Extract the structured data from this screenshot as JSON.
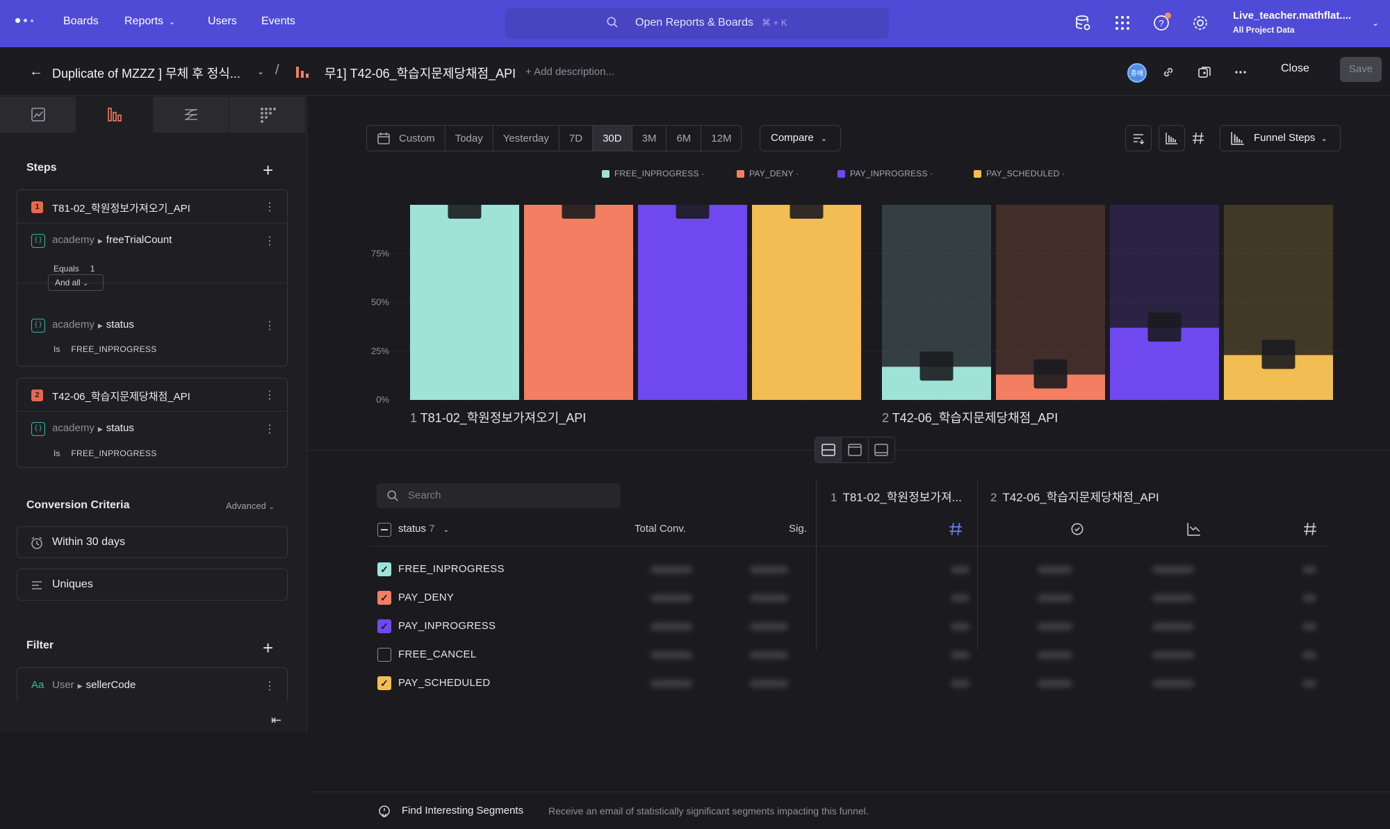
{
  "nav": {
    "links": [
      "Boards",
      "Reports",
      "Users",
      "Events"
    ],
    "search_text": "Open Reports & Boards",
    "search_shortcut": "⌘ + K",
    "account_name": "Live_teacher.mathflat....",
    "account_sub": "All Project Data",
    "brand_color": "#4f4bd6"
  },
  "breadcrumb": {
    "parent": "Duplicate of MZZZ ] 무체 후 정식...",
    "separator": "/",
    "report": "무1] T42-06_학습지문제당채점_API",
    "add_description": "+ Add description...",
    "avatar_text": "종배",
    "close": "Close",
    "save": "Save"
  },
  "left": {
    "steps_title": "Steps",
    "steps": [
      {
        "num": "1",
        "name": "T81-02_학원정보가져오기_API",
        "filters": [
          {
            "source": "academy",
            "prop": "freeTrialCount",
            "op": "Equals",
            "value": "1"
          },
          {
            "source": "academy",
            "prop": "status",
            "op": "Is",
            "value": "FREE_INPROGRESS"
          }
        ],
        "combinator": "And all"
      },
      {
        "num": "2",
        "name": "T42-06_학습지문제당채점_API",
        "filters": [
          {
            "source": "academy",
            "prop": "status",
            "op": "Is",
            "value": "FREE_INPROGRESS"
          }
        ]
      }
    ],
    "conversion_title": "Conversion Criteria",
    "advanced": "Advanced",
    "within": "Within 30 days",
    "uniques": "Uniques",
    "filter_title": "Filter",
    "filter": {
      "type": "Aa",
      "source": "User",
      "prop": "sellerCode"
    }
  },
  "toolbar": {
    "ranges": [
      "Custom",
      "Today",
      "Yesterday",
      "7D",
      "30D",
      "3M",
      "6M",
      "12M"
    ],
    "active_range": "30D",
    "compare": "Compare",
    "view": "Funnel Steps"
  },
  "legend": [
    {
      "name": "FREE_INPROGRESS ·",
      "color": "#9fe3d8"
    },
    {
      "name": "PAY_DENY ·",
      "color": "#f47e62"
    },
    {
      "name": "PAY_INPROGRESS ·",
      "color": "#7048f0"
    },
    {
      "name": "PAY_SCHEDULED ·",
      "color": "#f2bd52"
    }
  ],
  "chart_data": {
    "type": "bar",
    "categories": [
      "1 T81-02_학원정보가져오기_API",
      "2 T42-06_학습지문제당채점_API"
    ],
    "step_numbers": [
      "1",
      "2"
    ],
    "step_names": [
      "T81-02_학원정보가져오기_API",
      "T42-06_학습지문제당채점_API"
    ],
    "y_ticks": [
      "0%",
      "25%",
      "50%",
      "75%"
    ],
    "ylim": [
      0,
      100
    ],
    "grid": true,
    "series": [
      {
        "name": "FREE_INPROGRESS",
        "color": "#9fe3d8",
        "values": [
          100,
          17
        ]
      },
      {
        "name": "PAY_DENY",
        "color": "#f47e62",
        "values": [
          100,
          13
        ]
      },
      {
        "name": "PAY_INPROGRESS",
        "color": "#7048f0",
        "values": [
          100,
          37
        ]
      },
      {
        "name": "PAY_SCHEDULED",
        "color": "#f2bd52",
        "values": [
          100,
          23
        ]
      }
    ]
  },
  "table": {
    "search_placeholder": "Search",
    "group_by": "status",
    "group_count": "7",
    "col_total": "Total Conv.",
    "col_sig": "Sig.",
    "step1_header": "T81-02_학원정보가져...",
    "step2_header": "T42-06_학습지문제당채점_API",
    "rows": [
      {
        "label": "FREE_INPROGRESS",
        "checked": true,
        "color": "#9fe3d8"
      },
      {
        "label": "PAY_DENY",
        "checked": true,
        "color": "#f47e62"
      },
      {
        "label": "PAY_INPROGRESS",
        "checked": true,
        "color": "#7048f0"
      },
      {
        "label": "FREE_CANCEL",
        "checked": false,
        "color": ""
      },
      {
        "label": "PAY_SCHEDULED",
        "checked": true,
        "color": "#f2bd52"
      }
    ]
  },
  "footer": {
    "title": "Find Interesting Segments",
    "desc": "Receive an email of statistically significant segments impacting this funnel."
  }
}
